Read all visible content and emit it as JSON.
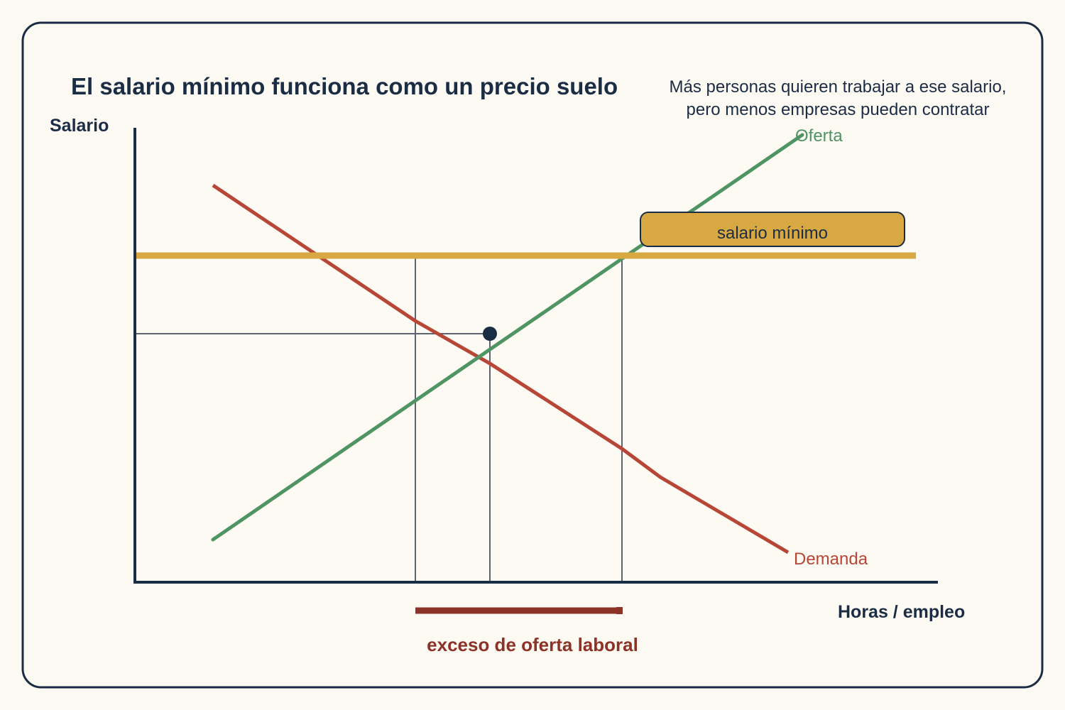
{
  "title": "El salario mínimo funciona como un precio suelo",
  "note": {
    "line1": "Más personas quieren trabajar a ese salario,",
    "line2": "pero menos empresas pueden contratar"
  },
  "axes": {
    "y_label": "Salario",
    "x_label": "Horas / empleo"
  },
  "curves": {
    "supply_label": "Oferta",
    "demand_label": "Demanda"
  },
  "min_wage": {
    "label": "salario mínimo"
  },
  "excess": {
    "label": "exceso de oferta laboral"
  },
  "colors": {
    "background": "#fdf9f3",
    "frame": "#1b2d45",
    "text": "#1b2d45",
    "supply": "#4f9463",
    "demand": "#b84636",
    "min_wage": "#d8a842",
    "guides": "#5b6470",
    "excess": "#8d3226",
    "equilibrium_point": "#1b2d45"
  }
}
